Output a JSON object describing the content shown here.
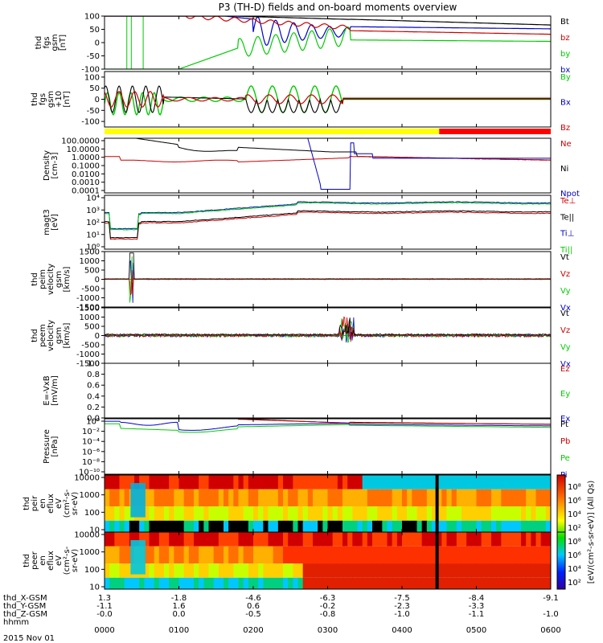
{
  "title": "P3 (TH-D) fields and on-board moments overview",
  "chart_data": {
    "type": "line",
    "panels": [
      {
        "id": "fgs",
        "ylabel": [
          "thd",
          "fgs",
          "gsm",
          "[nT]"
        ],
        "yticks": [
          "100",
          "50",
          "0",
          "-50",
          "-100"
        ],
        "ylim": [
          -100,
          100
        ],
        "legend": [
          {
            "name": "Bt",
            "color": "#000000"
          },
          {
            "name": "bz",
            "color": "#cc0000"
          },
          {
            "name": "by",
            "color": "#00cc00"
          },
          {
            "name": "bx",
            "color": "#0000cc"
          }
        ]
      },
      {
        "id": "fgs-dsl",
        "ylabel": [
          "thd",
          "fgs",
          "gsm",
          "+10",
          "[nT]"
        ],
        "yticks": [
          "100",
          "50",
          "0",
          "-50",
          "-100"
        ],
        "ylim": [
          -125,
          125
        ],
        "legend": [
          {
            "name": "By",
            "color": "#00cc00"
          },
          {
            "name": "Bx",
            "color": "#0000cc"
          },
          {
            "name": "Bz",
            "color": "#cc0000"
          }
        ]
      },
      {
        "id": "density",
        "ylabel": [
          "Density",
          "[cm-3]"
        ],
        "yticks": [
          "100.0000",
          "10.0000",
          "1.0000",
          "0.1000",
          "0.0100",
          "0.0010",
          "0.0001"
        ],
        "ylim_log10": [
          -4,
          2
        ],
        "legend": [
          {
            "name": "Ne",
            "color": "#cc0000"
          },
          {
            "name": "Ni",
            "color": "#000000"
          },
          {
            "name": "Npot",
            "color": "#0000cc"
          }
        ]
      },
      {
        "id": "temperature",
        "ylabel": [
          "magt3",
          "[eV]"
        ],
        "yticks": [
          "10⁴",
          "10³",
          "10²",
          "10¹",
          "10⁰"
        ],
        "ylim_log10": [
          0,
          4
        ],
        "legend": [
          {
            "name": "Te⊥",
            "color": "#cc0000"
          },
          {
            "name": "Te||",
            "color": "#000000"
          },
          {
            "name": "Ti⊥",
            "color": "#0000cc"
          },
          {
            "name": "Ti||",
            "color": "#00cc00"
          }
        ]
      },
      {
        "id": "peim-velocity",
        "ylabel": [
          "thd",
          "peim",
          "velocity",
          "gsm",
          "[km/s]"
        ],
        "yticks": [
          "1500",
          "1000",
          "500",
          "0",
          "-500",
          "-1000",
          "-1500"
        ],
        "ylim": [
          -1500,
          1500
        ],
        "legend": [
          {
            "name": "Vt",
            "color": "#000000"
          },
          {
            "name": "Vz",
            "color": "#cc0000"
          },
          {
            "name": "Vy",
            "color": "#00cc00"
          },
          {
            "name": "Vx",
            "color": "#0000cc"
          }
        ]
      },
      {
        "id": "peem-velocity",
        "ylabel": [
          "thd",
          "peem",
          "velocity",
          "gsm",
          "[km/s]"
        ],
        "yticks": [
          "1500",
          "1000",
          "500",
          "0",
          "-500",
          "-1000",
          "-1500"
        ],
        "ylim": [
          -1500,
          1500
        ],
        "legend": [
          {
            "name": "Vt",
            "color": "#000000"
          },
          {
            "name": "Vz",
            "color": "#cc0000"
          },
          {
            "name": "Vy",
            "color": "#00cc00"
          },
          {
            "name": "Vx",
            "color": "#0000cc"
          }
        ]
      },
      {
        "id": "efield",
        "ylabel": [
          "E=-VxB",
          "[mV/m]"
        ],
        "yticks": [
          "1.0",
          "0.8",
          "0.6",
          "0.4",
          "0.2",
          "0.0"
        ],
        "ylim": [
          0,
          1
        ],
        "legend": [
          {
            "name": "Ez",
            "color": "#cc0000"
          },
          {
            "name": "Ey",
            "color": "#00cc00"
          },
          {
            "name": "Ex",
            "color": "#0000cc"
          }
        ]
      },
      {
        "id": "pressure",
        "ylabel": [
          "Pressure",
          "[nPa]"
        ],
        "yticks": [
          "10⁰",
          "10⁻²",
          "10⁻⁴",
          "10⁻⁶",
          "10⁻⁸",
          "10⁻¹⁰"
        ],
        "ylim_log10": [
          -10,
          1
        ],
        "legend": [
          {
            "name": "Pt",
            "color": "#000000"
          },
          {
            "name": "Pb",
            "color": "#cc0000"
          },
          {
            "name": "Pe",
            "color": "#00cc00"
          },
          {
            "name": "Pi",
            "color": "#0000cc"
          }
        ]
      },
      {
        "id": "peir-spectrogram",
        "ylabel": [
          "thd",
          "peir",
          "en",
          "eflux",
          "eV",
          "(cm²-s-",
          "sr-eV)"
        ],
        "yticks": [
          "10000",
          "1000",
          "100",
          "10"
        ]
      },
      {
        "id": "peer-spectrogram",
        "ylabel": [
          "thd",
          "peer",
          "en",
          "eflux",
          "eV",
          "(cm²-s-",
          "sr-eV)"
        ],
        "yticks": [
          "10000",
          "1000",
          "100",
          "10"
        ]
      }
    ],
    "colorbar": {
      "label": "[eV/(cm²-s-sr-eV)] (All Qs)",
      "ticks": [
        "10⁸",
        "10⁶",
        "10⁴",
        "10²",
        "10⁸",
        "10⁶",
        "10⁴",
        "10²"
      ]
    },
    "mode_bar": {
      "colors": [
        "#ffff00",
        "#ff0000"
      ],
      "switch_at_hours": 4.5
    },
    "xaxis": {
      "hours": [
        0,
        1,
        2,
        3,
        4,
        5,
        6
      ],
      "labels": [
        "0000",
        "0100",
        "0200",
        "0300",
        "0400",
        "0500",
        "0600"
      ],
      "position_rows": [
        {
          "name": "thd_X-GSM",
          "values": [
            "1.3",
            "-1.8",
            "-4.6",
            "-6.3",
            "-7.5",
            "-8.4",
            "-9.1"
          ]
        },
        {
          "name": "thd_Y-GSM",
          "values": [
            "-1.1",
            "1.6",
            "0.6",
            "-0.2",
            "-2.3",
            "-3.3",
            ""
          ]
        },
        {
          "name": "thd_Z-GSM",
          "values": [
            "-0.0",
            "0.0",
            "-0.5",
            "-0.8",
            "-1.0",
            "-1.1",
            "-1.0"
          ]
        }
      ],
      "time_row": "hhmm",
      "date": "2015 Nov 01"
    }
  }
}
